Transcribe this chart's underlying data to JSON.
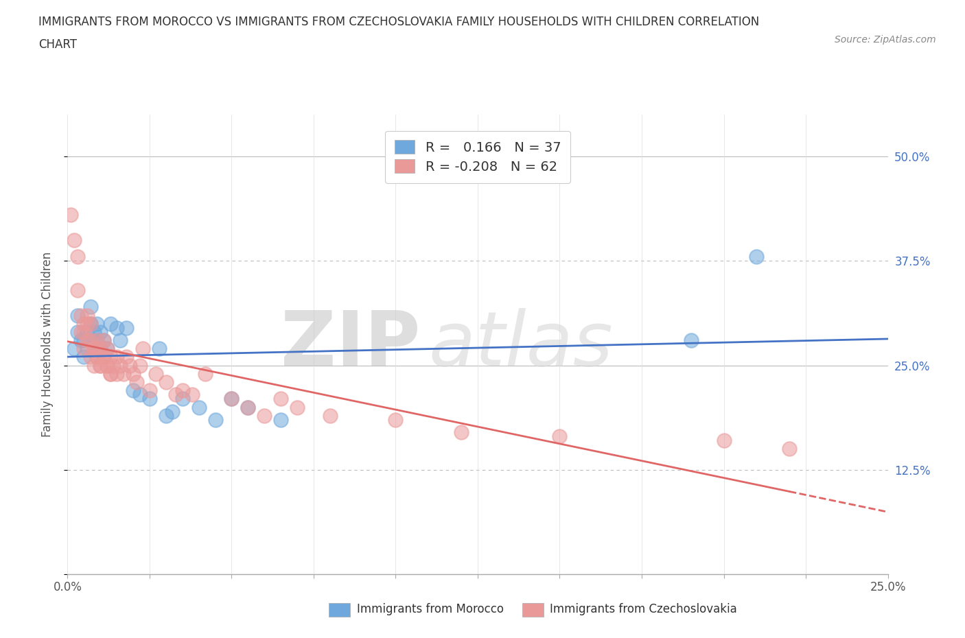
{
  "title_line1": "IMMIGRANTS FROM MOROCCO VS IMMIGRANTS FROM CZECHOSLOVAKIA FAMILY HOUSEHOLDS WITH CHILDREN CORRELATION",
  "title_line2": "CHART",
  "source_text": "Source: ZipAtlas.com",
  "ylabel": "Family Households with Children",
  "xlabel_morocco": "Immigrants from Morocco",
  "xlabel_czechoslovakia": "Immigrants from Czechoslovakia",
  "xlim": [
    0.0,
    0.25
  ],
  "ylim": [
    0.0,
    0.55
  ],
  "ytick_vals": [
    0.0,
    0.125,
    0.25,
    0.375,
    0.5
  ],
  "ytick_labels_right": [
    "",
    "12.5%",
    "25.0%",
    "37.5%",
    "50.0%"
  ],
  "xtick_vals": [
    0.0,
    0.025,
    0.05,
    0.075,
    0.1,
    0.125,
    0.15,
    0.175,
    0.2,
    0.225,
    0.25
  ],
  "xtick_labels": [
    "0.0%",
    "",
    "",
    "",
    "",
    "",
    "",
    "",
    "",
    "",
    "25.0%"
  ],
  "R_morocco": 0.166,
  "N_morocco": 37,
  "R_czechoslovakia": -0.208,
  "N_czechoslovakia": 62,
  "color_morocco": "#6fa8dc",
  "color_czechoslovakia": "#ea9999",
  "trend_color_morocco": "#4472c4",
  "trend_color_czechoslovakia": "#e06666",
  "morocco_scatter_x": [
    0.002,
    0.003,
    0.003,
    0.004,
    0.005,
    0.005,
    0.006,
    0.006,
    0.007,
    0.007,
    0.007,
    0.008,
    0.008,
    0.009,
    0.009,
    0.01,
    0.01,
    0.011,
    0.012,
    0.013,
    0.015,
    0.016,
    0.018,
    0.02,
    0.022,
    0.025,
    0.028,
    0.03,
    0.032,
    0.035,
    0.04,
    0.045,
    0.05,
    0.055,
    0.065,
    0.19,
    0.21
  ],
  "morocco_scatter_y": [
    0.27,
    0.29,
    0.31,
    0.28,
    0.26,
    0.28,
    0.27,
    0.29,
    0.28,
    0.3,
    0.32,
    0.27,
    0.29,
    0.28,
    0.3,
    0.27,
    0.29,
    0.28,
    0.27,
    0.3,
    0.295,
    0.28,
    0.295,
    0.22,
    0.215,
    0.21,
    0.27,
    0.19,
    0.195,
    0.21,
    0.2,
    0.185,
    0.21,
    0.2,
    0.185,
    0.28,
    0.38
  ],
  "czechoslovakia_scatter_x": [
    0.001,
    0.002,
    0.003,
    0.003,
    0.004,
    0.004,
    0.005,
    0.005,
    0.005,
    0.006,
    0.006,
    0.006,
    0.007,
    0.007,
    0.007,
    0.008,
    0.008,
    0.009,
    0.009,
    0.01,
    0.01,
    0.011,
    0.011,
    0.012,
    0.012,
    0.013,
    0.013,
    0.014,
    0.015,
    0.015,
    0.016,
    0.017,
    0.018,
    0.019,
    0.02,
    0.021,
    0.022,
    0.023,
    0.025,
    0.027,
    0.03,
    0.033,
    0.035,
    0.038,
    0.042,
    0.05,
    0.055,
    0.06,
    0.065,
    0.07,
    0.08,
    0.1,
    0.12,
    0.15,
    0.2,
    0.22,
    0.008,
    0.009,
    0.01,
    0.011,
    0.012,
    0.013
  ],
  "czechoslovakia_scatter_y": [
    0.43,
    0.4,
    0.34,
    0.38,
    0.29,
    0.31,
    0.27,
    0.29,
    0.3,
    0.28,
    0.3,
    0.31,
    0.26,
    0.28,
    0.3,
    0.25,
    0.27,
    0.26,
    0.28,
    0.25,
    0.27,
    0.26,
    0.28,
    0.25,
    0.27,
    0.24,
    0.26,
    0.25,
    0.24,
    0.26,
    0.25,
    0.24,
    0.26,
    0.25,
    0.24,
    0.23,
    0.25,
    0.27,
    0.22,
    0.24,
    0.23,
    0.215,
    0.22,
    0.215,
    0.24,
    0.21,
    0.2,
    0.19,
    0.21,
    0.2,
    0.19,
    0.185,
    0.17,
    0.165,
    0.16,
    0.15,
    0.27,
    0.26,
    0.25,
    0.26,
    0.25,
    0.24
  ],
  "grid_color": "#cccccc",
  "grid_style_solid": [
    0.0,
    0.25,
    0.5
  ],
  "grid_style_dashed": [
    0.125,
    0.375
  ],
  "background_color": "#ffffff",
  "title_color": "#333333",
  "axis_label_color": "#555555",
  "tick_label_color": "#4472c4",
  "watermark_zip_color": "#c8c8c8",
  "watermark_atlas_color": "#d8d8d8"
}
